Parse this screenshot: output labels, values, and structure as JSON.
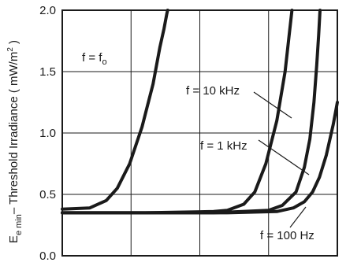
{
  "chart_data": {
    "type": "line",
    "title": "",
    "xlabel": "",
    "ylabel": {
      "symbol": "E",
      "sub1": "e min",
      "text": "– Threshold Irradiance ( mW/m",
      "sup": "2",
      "close": " )"
    },
    "ylim": [
      0,
      2
    ],
    "yticks": [
      "0.0",
      "0.5",
      "1.0",
      "1.5",
      "2.0"
    ],
    "xlim": [
      0,
      1
    ],
    "xgrid": [
      0.25,
      0.5,
      0.75
    ],
    "grid": true,
    "series": [
      {
        "name": "f = fo",
        "label_main": "f = f",
        "label_sub": "o",
        "x": [
          0.0,
          0.1,
          0.16,
          0.2,
          0.245,
          0.29,
          0.33,
          0.355,
          0.37,
          0.38,
          0.383
        ],
        "y": [
          0.38,
          0.39,
          0.45,
          0.55,
          0.75,
          1.05,
          1.4,
          1.7,
          1.85,
          1.97,
          2.0
        ]
      },
      {
        "name": "f = 10 kHz",
        "label_main": "f = 10 kHz",
        "label_sub": "",
        "x": [
          0.0,
          0.3,
          0.55,
          0.6,
          0.66,
          0.7,
          0.74,
          0.78,
          0.81,
          0.825,
          0.835
        ],
        "y": [
          0.35,
          0.35,
          0.36,
          0.37,
          0.42,
          0.52,
          0.75,
          1.1,
          1.5,
          1.8,
          2.0
        ]
      },
      {
        "name": "f = 1 kHz",
        "label_main": "f = 1 kHz",
        "label_sub": "",
        "x": [
          0.0,
          0.55,
          0.75,
          0.8,
          0.85,
          0.88,
          0.9,
          0.915,
          0.925,
          0.932,
          0.937
        ],
        "y": [
          0.35,
          0.35,
          0.37,
          0.41,
          0.52,
          0.72,
          0.95,
          1.25,
          1.55,
          1.8,
          2.0
        ]
      },
      {
        "name": "f = 100 Hz",
        "label_main": "f = 100 Hz",
        "label_sub": "",
        "x": [
          0.0,
          0.6,
          0.78,
          0.84,
          0.88,
          0.91,
          0.935,
          0.96,
          0.985,
          1.0
        ],
        "y": [
          0.35,
          0.35,
          0.36,
          0.39,
          0.44,
          0.52,
          0.64,
          0.82,
          1.07,
          1.25
        ]
      }
    ]
  }
}
